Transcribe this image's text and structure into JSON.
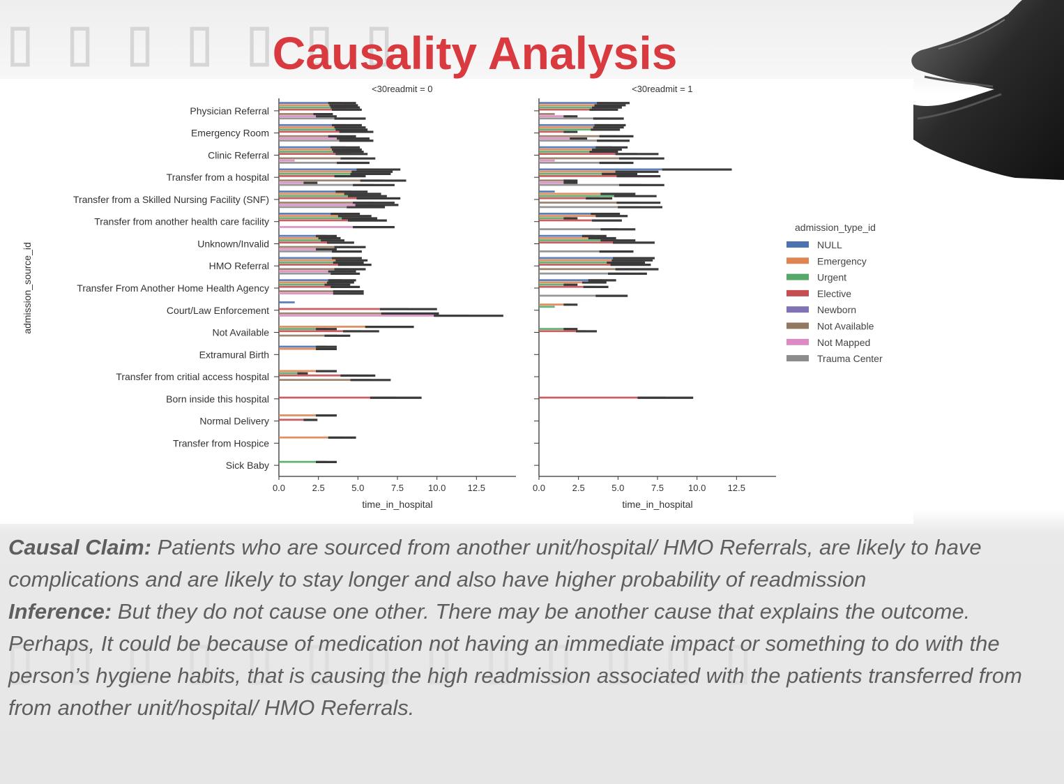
{
  "slide": {
    "title": "Causality Analysis",
    "notes": {
      "claim_label": "Causal Claim:",
      "claim_text": "Patients who are sourced from another unit/hospital/ HMO Referrals, are likely to have complications and are likely to stay longer and also have higher probability of readmission",
      "inference_label": "Inference:",
      "inference_text": "But they do not cause one other.  There may be another cause that explains the outcome. Perhaps, It could be because of medication not having an immediate impact or something to do with the person’s hygiene habits, that is causing the high readmission associated with the patients transferred from from another unit/hospital/ HMO Referrals."
    }
  },
  "chart_data": {
    "type": "bar",
    "orientation": "horizontal",
    "ylabel": "admission_source_id",
    "xlabel": "time_in_hospital",
    "xlim": [
      0,
      15
    ],
    "xticks": [
      "0.0",
      "2.5",
      "5.0",
      "7.5",
      "10.0",
      "12.5"
    ],
    "categories": [
      "Physician Referral",
      "Emergency Room",
      "Clinic Referral",
      "Transfer from a hospital",
      "Transfer from a Skilled Nursing Facility (SNF)",
      "Transfer from another health care facility",
      "Unknown/Invalid",
      "HMO Referral",
      "Transfer From Another Home Health Agency",
      "Court/Law Enforcement",
      "Not Available",
      "Extramural Birth",
      "Transfer from critial access hospital",
      "Born inside this hospital",
      "Normal Delivery",
      "Transfer from Hospice",
      "Sick Baby"
    ],
    "legend": {
      "title": "admission_type_id",
      "position": "center-right",
      "entries": [
        {
          "name": "NULL",
          "color": "#4c72b0"
        },
        {
          "name": "Emergency",
          "color": "#dd8452"
        },
        {
          "name": "Urgent",
          "color": "#55a868"
        },
        {
          "name": "Elective",
          "color": "#c44e52"
        },
        {
          "name": "Newborn",
          "color": "#8172b3"
        },
        {
          "name": "Not Available",
          "color": "#937860"
        },
        {
          "name": "Not Mapped",
          "color": "#da8bc3"
        },
        {
          "name": "Trauma Center",
          "color": "#8c8c8c"
        }
      ]
    },
    "error_bar_color": "#3a3a3a",
    "panels": [
      {
        "title": "<30readmit = 0",
        "series": [
          {
            "name": "NULL",
            "values": [
              4.0,
              4.3,
              4.2,
              6.3,
              4.6,
              4.2,
              3.0,
              4.3,
              4.0,
              1.0,
              null,
              3.0,
              null,
              null,
              null,
              null,
              null
            ]
          },
          {
            "name": "Emergency",
            "values": [
              4.1,
              4.5,
              4.3,
              5.9,
              5.3,
              4.8,
              3.2,
              4.6,
              3.9,
              null,
              7.0,
              3.0,
              3.0,
              null,
              3.0,
              4.0,
              null
            ]
          },
          {
            "name": "Urgent",
            "values": [
              4.2,
              4.6,
              4.4,
              5.8,
              5.6,
              5.1,
              3.4,
              4.4,
              3.7,
              null,
              3.0,
              null,
              1.5,
              null,
              null,
              null,
              3.0
            ]
          },
          {
            "name": "Elective",
            "values": [
              4.3,
              4.9,
              4.6,
              4.5,
              6.3,
              5.6,
              3.9,
              4.8,
              4.2,
              8.2,
              5.2,
              null,
              5.0,
              7.4,
              2.0,
              null,
              null
            ]
          },
          {
            "name": "Newborn",
            "values": [
              null,
              null,
              null,
              null,
              null,
              null,
              null,
              null,
              null,
              null,
              null,
              null,
              null,
              null,
              null,
              null,
              null
            ]
          },
          {
            "name": "Not Available",
            "values": [
              2.8,
              4.0,
              5.0,
              6.6,
              6.0,
              null,
              4.5,
              4.5,
              4.4,
              8.3,
              3.7,
              null,
              5.8,
              null,
              null,
              null,
              null
            ]
          },
          {
            "name": "Not Mapped",
            "values": [
              3.0,
              4.7,
              1.0,
              2.0,
              6.2,
              6.0,
              3.0,
              4.0,
              4.4,
              12.0,
              null,
              null,
              null,
              null,
              null,
              null,
              null
            ]
          },
          {
            "name": "Trauma Center",
            "values": [
              4.5,
              4.9,
              4.7,
              6.0,
              5.5,
              null,
              4.3,
              4.2,
              null,
              null,
              null,
              null,
              null,
              null,
              null,
              null,
              null
            ]
          }
        ]
      },
      {
        "title": "<30readmit = 1",
        "series": [
          {
            "name": "NULL",
            "values": [
              4.7,
              4.5,
              4.6,
              10.0,
              1.0,
              4.2,
              3.5,
              6.0,
              4.0,
              null,
              null,
              null,
              null,
              null,
              null,
              null,
              null
            ]
          },
          {
            "name": "Emergency",
            "values": [
              4.5,
              4.4,
              4.3,
              6.2,
              5.0,
              4.6,
              4.0,
              5.9,
              3.5,
              2.0,
              null,
              null,
              null,
              null,
              null,
              null,
              null
            ]
          },
          {
            "name": "Urgent",
            "values": [
              4.3,
              4.2,
              4.1,
              5.1,
              6.1,
              2.0,
              5.0,
              5.5,
              2.0,
              1.0,
              2.0,
              null,
              null,
              null,
              null,
              null,
              null
            ]
          },
          {
            "name": "Elective",
            "values": [
              4.1,
              2.0,
              6.2,
              6.3,
              3.8,
              4.3,
              6.0,
              5.8,
              3.6,
              null,
              3.0,
              null,
              null,
              8.0,
              null,
              null,
              null
            ]
          },
          {
            "name": "Newborn",
            "values": [
              null,
              null,
              null,
              null,
              null,
              null,
              null,
              null,
              null,
              null,
              null,
              null,
              null,
              null,
              null,
              null,
              null
            ]
          },
          {
            "name": "Not Available",
            "values": [
              1.0,
              4.9,
              6.5,
              2.0,
              6.3,
              null,
              null,
              6.2,
              null,
              null,
              null,
              null,
              null,
              null,
              null,
              null,
              null
            ]
          },
          {
            "name": "Not Mapped",
            "values": [
              2.0,
              2.5,
              1.0,
              2.0,
              null,
              null,
              null,
              null,
              null,
              null,
              null,
              null,
              null,
              null,
              null,
              null,
              null
            ]
          },
          {
            "name": "Trauma Center",
            "values": [
              4.4,
              4.7,
              4.9,
              6.5,
              6.4,
              5.0,
              4.9,
              5.6,
              4.6,
              null,
              null,
              null,
              null,
              null,
              null,
              null,
              null
            ]
          }
        ]
      }
    ]
  }
}
